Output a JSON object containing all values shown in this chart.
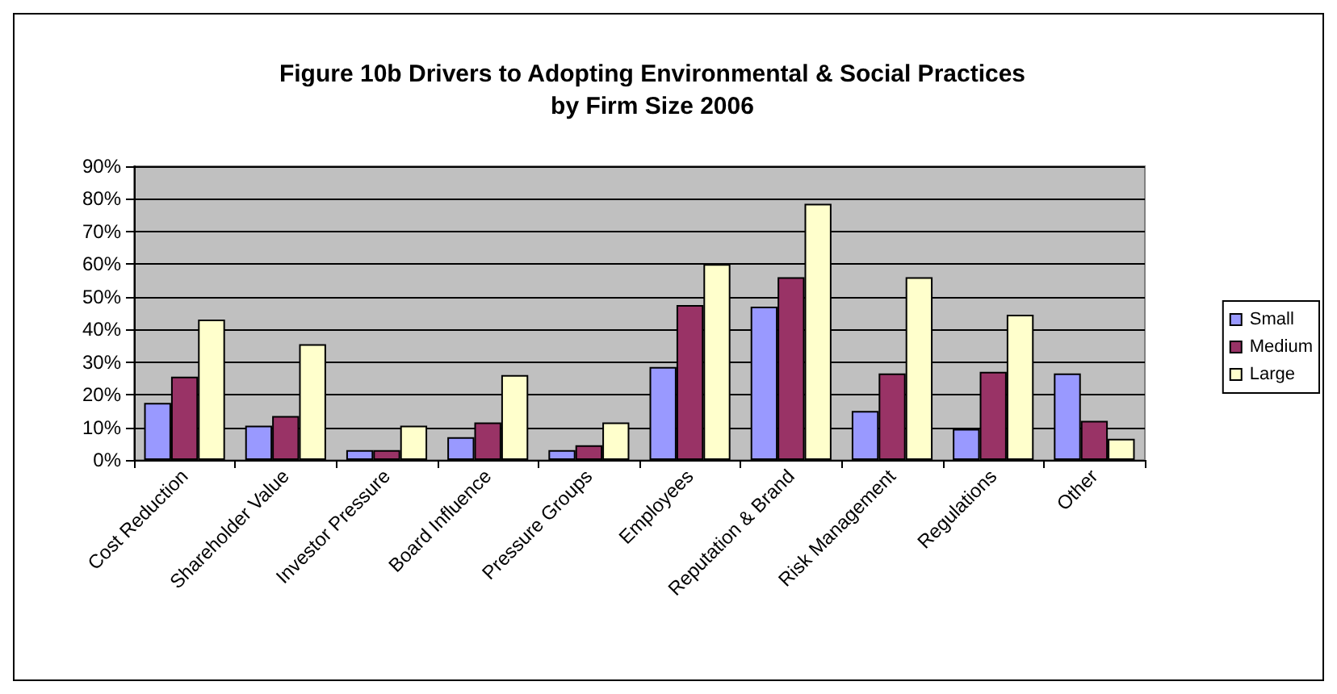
{
  "chart_data": {
    "type": "bar",
    "title": "Figure 10b Drivers to Adopting Environmental & Social Practices\nby Firm Size 2006",
    "categories": [
      "Cost Reduction",
      "Shareholder Value",
      "Investor Pressure",
      "Board Influence",
      "Pressure Groups",
      "Employees",
      "Reputation & Brand",
      "Risk Management",
      "Regulations",
      "Other"
    ],
    "series": [
      {
        "name": "Small",
        "color": "#9999ff",
        "values": [
          17.5,
          10.5,
          3,
          7,
          3,
          28.5,
          47,
          15,
          9.5,
          26.5
        ]
      },
      {
        "name": "Medium",
        "color": "#993366",
        "values": [
          25.5,
          13.5,
          3,
          11.5,
          4.5,
          47.5,
          56,
          26.5,
          27,
          12
        ]
      },
      {
        "name": "Large",
        "color": "#ffffcc",
        "values": [
          43,
          35.5,
          10.5,
          26,
          11.5,
          60,
          78.5,
          56,
          44.5,
          6.5
        ]
      }
    ],
    "ylim": [
      0,
      90
    ],
    "yticks": [
      {
        "value": 0,
        "label": "0%"
      },
      {
        "value": 10,
        "label": "10%"
      },
      {
        "value": 20,
        "label": "20%"
      },
      {
        "value": 30,
        "label": "30%"
      },
      {
        "value": 40,
        "label": "40%"
      },
      {
        "value": 50,
        "label": "50%"
      },
      {
        "value": 60,
        "label": "60%"
      },
      {
        "value": 70,
        "label": "70%"
      },
      {
        "value": 80,
        "label": "80%"
      },
      {
        "value": 90,
        "label": "90%"
      }
    ],
    "grid": "y",
    "legend": "right"
  }
}
